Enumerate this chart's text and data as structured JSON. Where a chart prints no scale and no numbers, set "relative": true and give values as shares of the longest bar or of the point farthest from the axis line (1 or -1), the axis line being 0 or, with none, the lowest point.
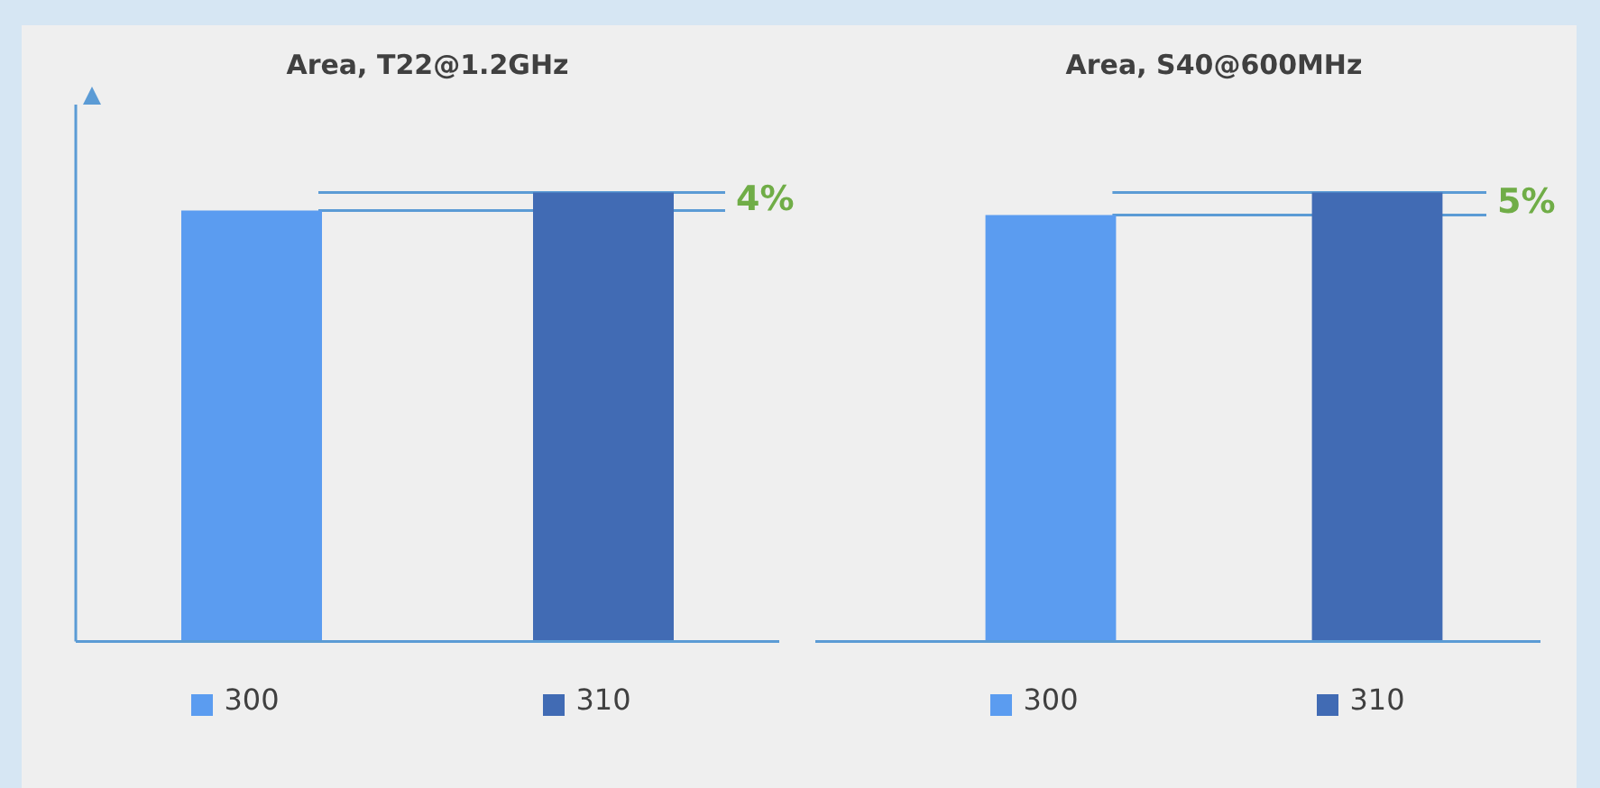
{
  "chart_data": [
    {
      "type": "bar",
      "title": "Area, T22@1.2GHz",
      "categories": [
        "300",
        "310"
      ],
      "relative": true,
      "annotations": [
        "4%"
      ],
      "values": [
        0.96,
        1
      ],
      "colors": [
        "#5b9cf0",
        "#416bb4"
      ],
      "ref_lines": [
        {
          "axis": "y",
          "value": 1,
          "color": "#5b9bd5"
        },
        {
          "axis": "y",
          "value": 0.96,
          "color": "#5b9bd5"
        }
      ]
    },
    {
      "type": "bar",
      "title": "Area, S40@600MHz",
      "categories": [
        "300",
        "310"
      ],
      "relative": true,
      "annotations": [
        "5%"
      ],
      "values": [
        0.95,
        1
      ],
      "colors": [
        "#5b9cf0",
        "#416bb4"
      ],
      "ref_lines": [
        {
          "axis": "y",
          "value": 1,
          "color": "#5b9bd5"
        },
        {
          "axis": "y",
          "value": 0.95,
          "color": "#5b9bd5"
        }
      ]
    }
  ]
}
